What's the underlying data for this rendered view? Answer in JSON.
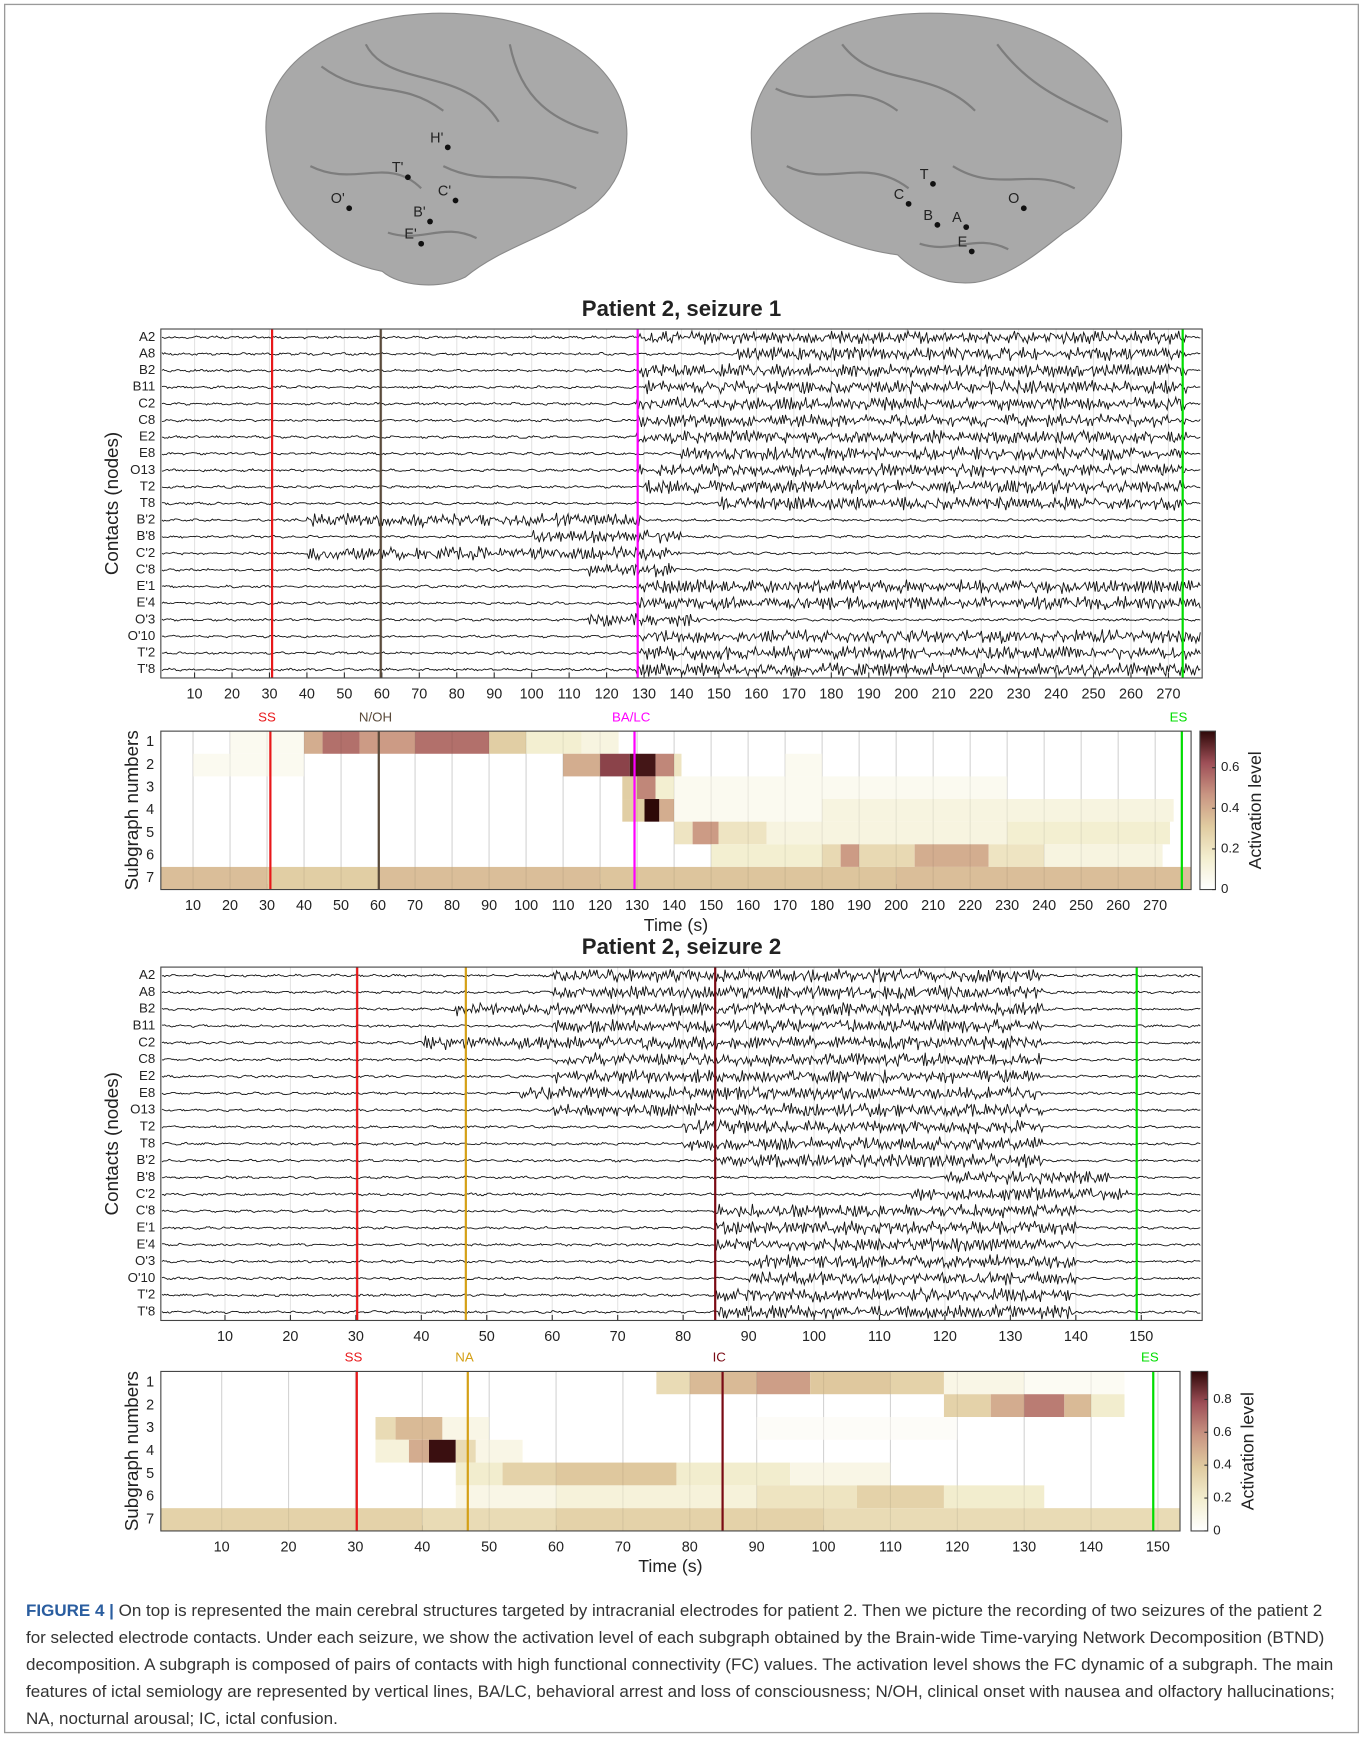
{
  "brains": {
    "left": [
      "H'",
      "T'",
      "O'",
      "C'",
      "B'",
      "E'"
    ],
    "right": [
      "T",
      "C",
      "B",
      "A",
      "O",
      "E"
    ]
  },
  "chart_data": [
    {
      "type": "eeg",
      "title": "Patient 2, seizure 1",
      "y_label": "Contacts (nodes)",
      "xlim": [
        1,
        279
      ],
      "xticks": [
        10,
        20,
        30,
        40,
        50,
        60,
        70,
        80,
        90,
        100,
        110,
        120,
        130,
        140,
        150,
        160,
        170,
        180,
        190,
        200,
        210,
        220,
        230,
        240,
        250,
        260,
        270
      ],
      "events": [
        {
          "x": 30.7,
          "color": "#e8181a"
        },
        {
          "x": 59.7,
          "color": "#5a4a3a"
        },
        {
          "x": 128.3,
          "color": "#ff00ff"
        },
        {
          "x": 273.8,
          "color": "#00dd00"
        }
      ],
      "channels": [
        {
          "name": "A2",
          "burst": [
            128,
            275
          ]
        },
        {
          "name": "A8",
          "burst": [
            155,
            275
          ]
        },
        {
          "name": "B2",
          "burst": [
            128,
            275
          ]
        },
        {
          "name": "B11",
          "burst": [
            130,
            275
          ]
        },
        {
          "name": "C2",
          "burst": [
            128,
            275
          ]
        },
        {
          "name": "C8",
          "burst": [
            128,
            275
          ]
        },
        {
          "name": "E2",
          "burst": [
            128,
            275
          ]
        },
        {
          "name": "E8",
          "burst": [
            140,
            275
          ]
        },
        {
          "name": "O13",
          "burst": [
            128,
            275
          ]
        },
        {
          "name": "T2",
          "burst": [
            130,
            275
          ]
        },
        {
          "name": "T8",
          "burst": [
            150,
            275
          ]
        },
        {
          "name": "B'2",
          "burst": [
            40,
            130
          ]
        },
        {
          "name": "B'8",
          "burst": [
            100,
            140
          ]
        },
        {
          "name": "C'2",
          "burst": [
            40,
            140
          ]
        },
        {
          "name": "C'8",
          "burst": [
            115,
            140
          ]
        },
        {
          "name": "E'1",
          "burst": [
            128,
            279
          ]
        },
        {
          "name": "E'4",
          "burst": [
            128,
            279
          ]
        },
        {
          "name": "O'3",
          "burst": [
            115,
            145
          ]
        },
        {
          "name": "O'10",
          "burst": [
            128,
            279
          ]
        },
        {
          "name": "T'2",
          "burst": [
            128,
            279
          ]
        },
        {
          "name": "T'8",
          "burst": [
            128,
            279
          ]
        }
      ]
    },
    {
      "type": "heatmap",
      "x_label": "Time (s)",
      "y_label": "Subgraph numbers",
      "colorbar_label": "Activation level",
      "xlim": [
        1.3,
        279.7
      ],
      "xticks": [
        10,
        20,
        30,
        40,
        50,
        60,
        70,
        80,
        90,
        100,
        110,
        120,
        130,
        140,
        150,
        160,
        170,
        180,
        190,
        200,
        210,
        220,
        230,
        240,
        250,
        260,
        270
      ],
      "clim": [
        0,
        0.78
      ],
      "cticks": [
        0,
        0.2,
        0.4,
        0.6
      ],
      "colormap": [
        "#ffffff",
        "#f3eecf",
        "#e0cba0",
        "#c99582",
        "#9e4f57",
        "#2e0808"
      ],
      "events": [
        {
          "label": "SS",
          "x": 30.9,
          "color": "#e8181a"
        },
        {
          "label": "N/OH",
          "x": 60.2,
          "color": "#5a4a3a"
        },
        {
          "label": "BA/LC",
          "x": 129.3,
          "color": "#ff00ff"
        },
        {
          "label": "ES",
          "x": 277.2,
          "color": "#00dd00"
        }
      ],
      "rows": [
        {
          "subgraph": 1,
          "segments": [
            [
              20,
              40,
              0.05
            ],
            [
              40,
              45,
              0.4
            ],
            [
              45,
              55,
              0.55
            ],
            [
              55,
              70,
              0.45
            ],
            [
              70,
              90,
              0.55
            ],
            [
              90,
              100,
              0.3
            ],
            [
              100,
              115,
              0.15
            ],
            [
              115,
              125,
              0.1
            ]
          ]
        },
        {
          "subgraph": 2,
          "segments": [
            [
              10,
              40,
              0.05
            ],
            [
              110,
              120,
              0.4
            ],
            [
              120,
              128,
              0.65
            ],
            [
              128,
              135,
              0.75
            ],
            [
              135,
              140,
              0.5
            ],
            [
              140,
              142,
              0.2
            ],
            [
              170,
              180,
              0.05
            ]
          ]
        },
        {
          "subgraph": 3,
          "segments": [
            [
              126,
              130,
              0.3
            ],
            [
              130,
              135,
              0.5
            ],
            [
              135,
              140,
              0.15
            ],
            [
              140,
              230,
              0.05
            ]
          ]
        },
        {
          "subgraph": 4,
          "segments": [
            [
              126,
              132,
              0.3
            ],
            [
              132,
              136,
              0.78
            ],
            [
              136,
              140,
              0.4
            ],
            [
              140,
              180,
              0.05
            ],
            [
              180,
              275,
              0.1
            ]
          ]
        },
        {
          "subgraph": 5,
          "segments": [
            [
              140,
              145,
              0.2
            ],
            [
              145,
              152,
              0.45
            ],
            [
              152,
              165,
              0.2
            ],
            [
              165,
              230,
              0.1
            ],
            [
              230,
              274,
              0.15
            ]
          ]
        },
        {
          "subgraph": 6,
          "segments": [
            [
              150,
              180,
              0.15
            ],
            [
              180,
              185,
              0.25
            ],
            [
              185,
              190,
              0.45
            ],
            [
              190,
              205,
              0.25
            ],
            [
              205,
              225,
              0.4
            ],
            [
              225,
              240,
              0.2
            ],
            [
              240,
              272,
              0.1
            ]
          ]
        },
        {
          "subgraph": 7,
          "segments": [
            [
              1.3,
              30,
              0.35
            ],
            [
              30,
              60,
              0.3
            ],
            [
              60,
              120,
              0.35
            ],
            [
              120,
              200,
              0.33
            ],
            [
              200,
              279.7,
              0.35
            ]
          ]
        }
      ]
    },
    {
      "type": "eeg",
      "title": "Patient 2, seizure 2",
      "y_label": "Contacts (nodes)",
      "xlim": [
        0.2,
        159.3
      ],
      "xticks": [
        10,
        20,
        30,
        40,
        50,
        60,
        70,
        80,
        90,
        100,
        110,
        120,
        130,
        140,
        150
      ],
      "events": [
        {
          "x": 30.2,
          "color": "#e8181a"
        },
        {
          "x": 46.8,
          "color": "#d4a017"
        },
        {
          "x": 84.9,
          "color": "#7a0a14"
        },
        {
          "x": 149.3,
          "color": "#00dd00"
        }
      ],
      "channels": [
        {
          "name": "A2",
          "burst": [
            60,
            135
          ]
        },
        {
          "name": "A8",
          "burst": [
            60,
            135
          ]
        },
        {
          "name": "B2",
          "burst": [
            45,
            135
          ]
        },
        {
          "name": "B11",
          "burst": [
            60,
            135
          ]
        },
        {
          "name": "C2",
          "burst": [
            40,
            135
          ]
        },
        {
          "name": "C8",
          "burst": [
            60,
            135
          ]
        },
        {
          "name": "E2",
          "burst": [
            60,
            135
          ]
        },
        {
          "name": "E8",
          "burst": [
            55,
            135
          ]
        },
        {
          "name": "O13",
          "burst": [
            60,
            135
          ]
        },
        {
          "name": "T2",
          "burst": [
            80,
            135
          ]
        },
        {
          "name": "T8",
          "burst": [
            80,
            135
          ]
        },
        {
          "name": "B'2",
          "burst": [
            85,
            135
          ]
        },
        {
          "name": "B'8",
          "burst": [
            120,
            145
          ]
        },
        {
          "name": "C'2",
          "burst": [
            115,
            148
          ]
        },
        {
          "name": "C'8",
          "burst": [
            85,
            140
          ]
        },
        {
          "name": "E'1",
          "burst": [
            85,
            140
          ]
        },
        {
          "name": "E'4",
          "burst": [
            85,
            140
          ]
        },
        {
          "name": "O'3",
          "burst": [
            90,
            140
          ]
        },
        {
          "name": "O'10",
          "burst": [
            90,
            140
          ]
        },
        {
          "name": "T'2",
          "burst": [
            85,
            140
          ]
        },
        {
          "name": "T'8",
          "burst": [
            85,
            140
          ]
        }
      ]
    },
    {
      "type": "heatmap",
      "x_label": "Time (s)",
      "y_label": "Subgraph numbers",
      "colorbar_label": "Activation level",
      "xlim": [
        0.9,
        153.3
      ],
      "xticks": [
        10,
        20,
        30,
        40,
        50,
        60,
        70,
        80,
        90,
        100,
        110,
        120,
        130,
        140,
        150
      ],
      "clim": [
        0,
        0.97
      ],
      "cticks": [
        0,
        0.2,
        0.4,
        0.6,
        0.8
      ],
      "colormap": [
        "#ffffff",
        "#f3eecf",
        "#e0cba0",
        "#c99582",
        "#9e4f57",
        "#2e0808"
      ],
      "events": [
        {
          "label": "SS",
          "x": 30.2,
          "color": "#e8181a"
        },
        {
          "label": "NA",
          "x": 46.8,
          "color": "#d4a017"
        },
        {
          "label": "IC",
          "x": 84.9,
          "color": "#7a0a14"
        },
        {
          "label": "ES",
          "x": 149.3,
          "color": "#00dd00"
        }
      ],
      "rows": [
        {
          "subgraph": 1,
          "segments": [
            [
              75,
              80,
              0.3
            ],
            [
              80,
              90,
              0.45
            ],
            [
              90,
              98,
              0.55
            ],
            [
              98,
              110,
              0.4
            ],
            [
              110,
              118,
              0.35
            ],
            [
              118,
              130,
              0.1
            ],
            [
              130,
              145,
              0.05
            ]
          ]
        },
        {
          "subgraph": 2,
          "segments": [
            [
              118,
              125,
              0.35
            ],
            [
              125,
              130,
              0.5
            ],
            [
              130,
              136,
              0.65
            ],
            [
              136,
              140,
              0.45
            ],
            [
              140,
              145,
              0.2
            ]
          ]
        },
        {
          "subgraph": 3,
          "segments": [
            [
              33,
              36,
              0.3
            ],
            [
              36,
              43,
              0.45
            ],
            [
              43,
              50,
              0.1
            ],
            [
              90,
              120,
              0.03
            ]
          ]
        },
        {
          "subgraph": 4,
          "segments": [
            [
              33,
              38,
              0.15
            ],
            [
              38,
              41,
              0.5
            ],
            [
              41,
              45,
              0.95
            ],
            [
              45,
              48,
              0.3
            ],
            [
              48,
              55,
              0.1
            ]
          ]
        },
        {
          "subgraph": 5,
          "segments": [
            [
              45,
              52,
              0.2
            ],
            [
              52,
              60,
              0.35
            ],
            [
              60,
              78,
              0.4
            ],
            [
              78,
              95,
              0.2
            ],
            [
              95,
              110,
              0.1
            ]
          ]
        },
        {
          "subgraph": 6,
          "segments": [
            [
              45,
              60,
              0.1
            ],
            [
              60,
              90,
              0.15
            ],
            [
              90,
              105,
              0.25
            ],
            [
              105,
              118,
              0.35
            ],
            [
              118,
              133,
              0.2
            ]
          ]
        },
        {
          "subgraph": 7,
          "segments": [
            [
              0.9,
              40,
              0.35
            ],
            [
              40,
              60,
              0.3
            ],
            [
              60,
              100,
              0.35
            ],
            [
              100,
              153.3,
              0.3
            ]
          ]
        }
      ]
    }
  ],
  "caption": {
    "label": "FIGURE 4 |",
    "text": "On top is represented the main cerebral structures targeted by intracranial electrodes for patient 2. Then we picture the recording of two seizures of the patient 2 for selected electrode contacts. Under each seizure, we show the activation level of each subgraph obtained by the Brain-wide Time-varying Network Decomposition (BTND) decomposition. A subgraph is composed of pairs of contacts with high functional connectivity (FC) values. The activation level shows the FC dynamic of a subgraph. The main features of ictal semiology are represented by vertical lines, BA/LC, behavioral arrest and loss of consciousness; N/OH, clinical onset with nausea and olfactory hallucinations; NA, nocturnal arousal; IC, ictal confusion."
  }
}
